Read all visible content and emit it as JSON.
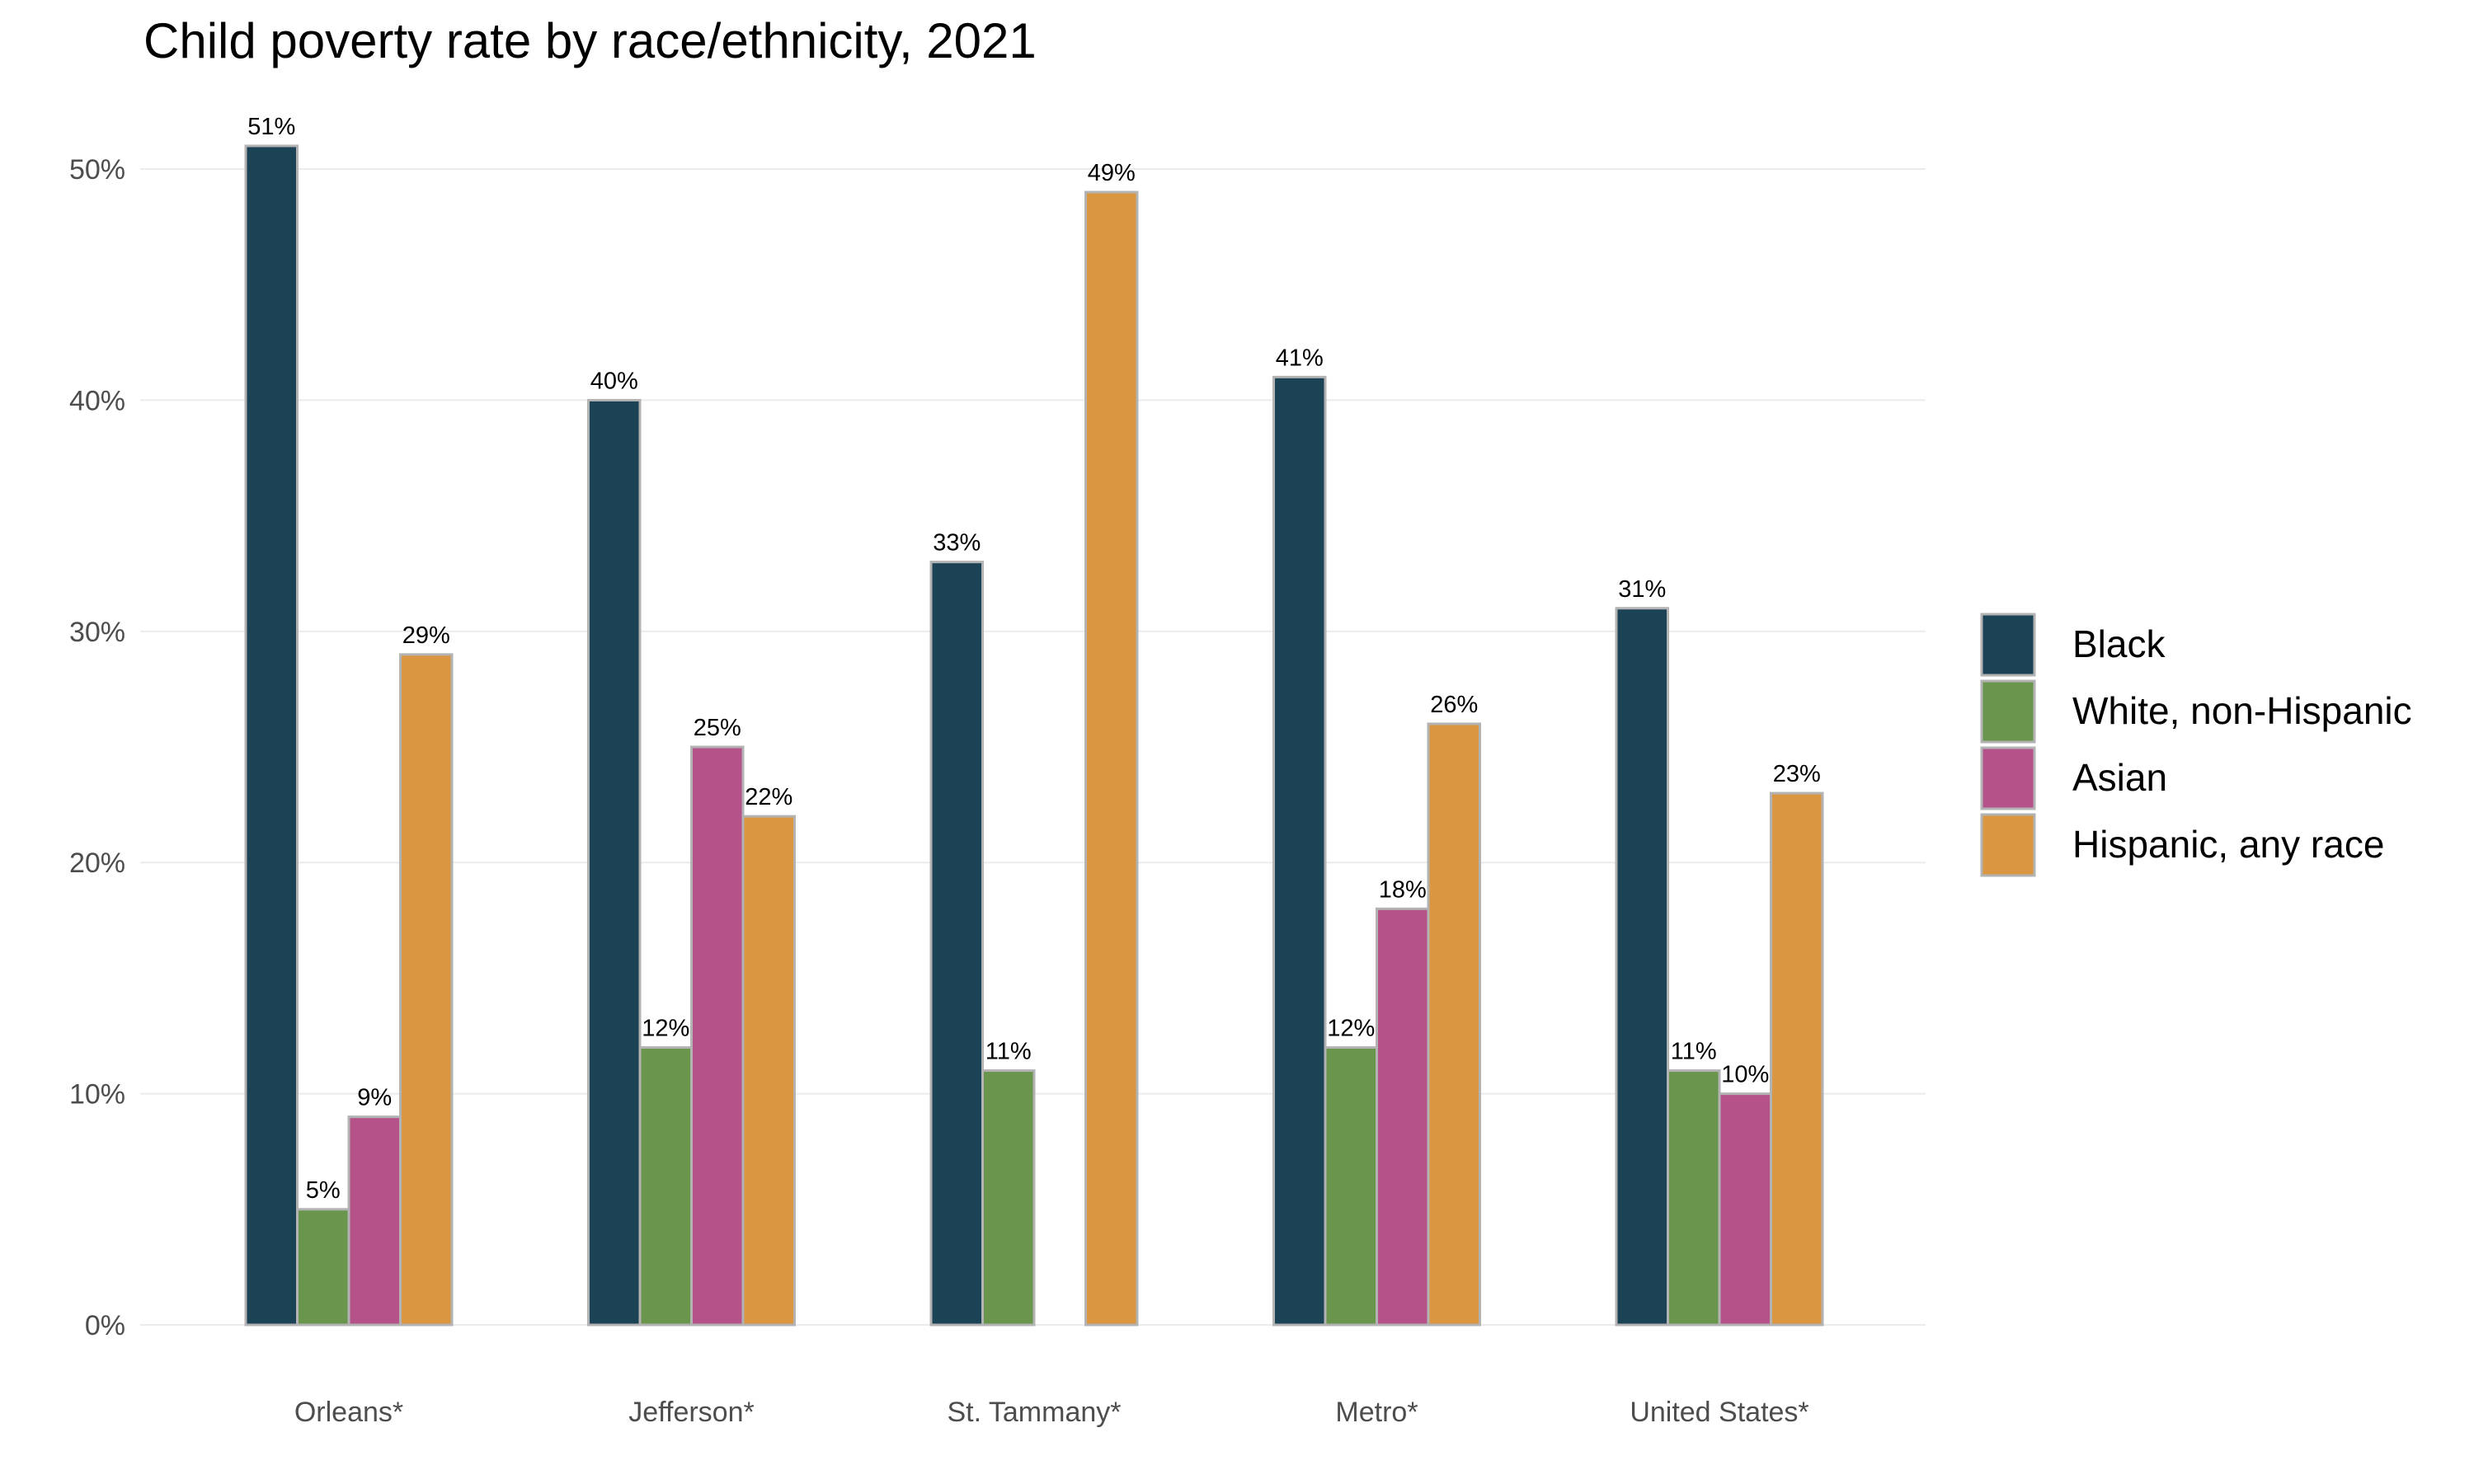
{
  "chart_data": {
    "type": "bar",
    "title": "Child poverty rate by race/ethnicity, 2021",
    "categories": [
      "Orleans*",
      "Jefferson*",
      "St. Tammany*",
      "Metro*",
      "United States*"
    ],
    "series": [
      {
        "name": "Black",
        "color": "#1b4255",
        "values": [
          51,
          40,
          33,
          41,
          31
        ]
      },
      {
        "name": "White, non-Hispanic",
        "color": "#6a954c",
        "values": [
          5,
          12,
          11,
          12,
          11
        ]
      },
      {
        "name": "Asian",
        "color": "#b5528a",
        "values": [
          9,
          25,
          null,
          18,
          10
        ]
      },
      {
        "name": "Hispanic, any race",
        "color": "#da9640",
        "values": [
          29,
          22,
          49,
          26,
          23
        ]
      }
    ],
    "ylim": [
      0,
      50
    ],
    "yticks": [
      "0%",
      "10%",
      "20%",
      "30%",
      "40%",
      "50%"
    ],
    "grid": true,
    "legend_position": "right",
    "value_suffix": "%"
  }
}
